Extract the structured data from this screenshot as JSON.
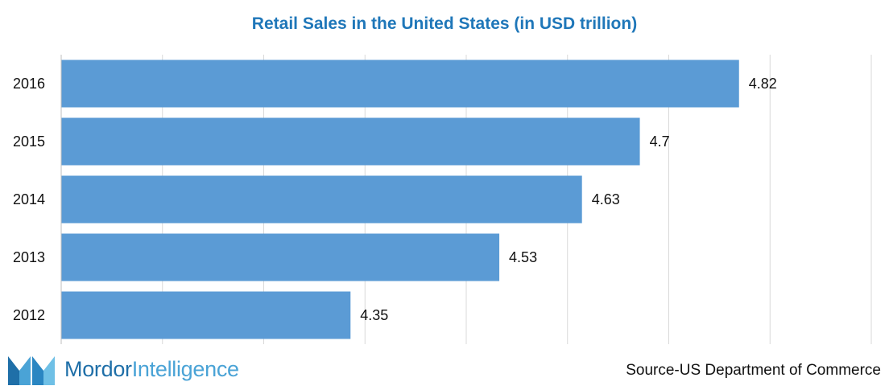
{
  "chart_data": {
    "type": "bar",
    "orientation": "horizontal",
    "title": "Retail Sales in the United States (in USD trillion)",
    "categories": [
      "2016",
      "2015",
      "2014",
      "2013",
      "2012"
    ],
    "values": [
      4.82,
      4.7,
      4.63,
      4.53,
      4.35
    ],
    "data_labels": [
      "4.82",
      "4.7",
      "4.63",
      "4.53",
      "4.35"
    ],
    "xlim": [
      4.0,
      4.98
    ],
    "grid": true,
    "xlabel": "",
    "ylabel": "",
    "bar_color": "#5b9bd5"
  },
  "branding": {
    "logo_name_primary": "Mordor",
    "logo_name_secondary": "Intelligence",
    "logo_colors": [
      "#1f6fa8",
      "#4aa3d6"
    ]
  },
  "source_text": "Source-US Department of Commerce"
}
